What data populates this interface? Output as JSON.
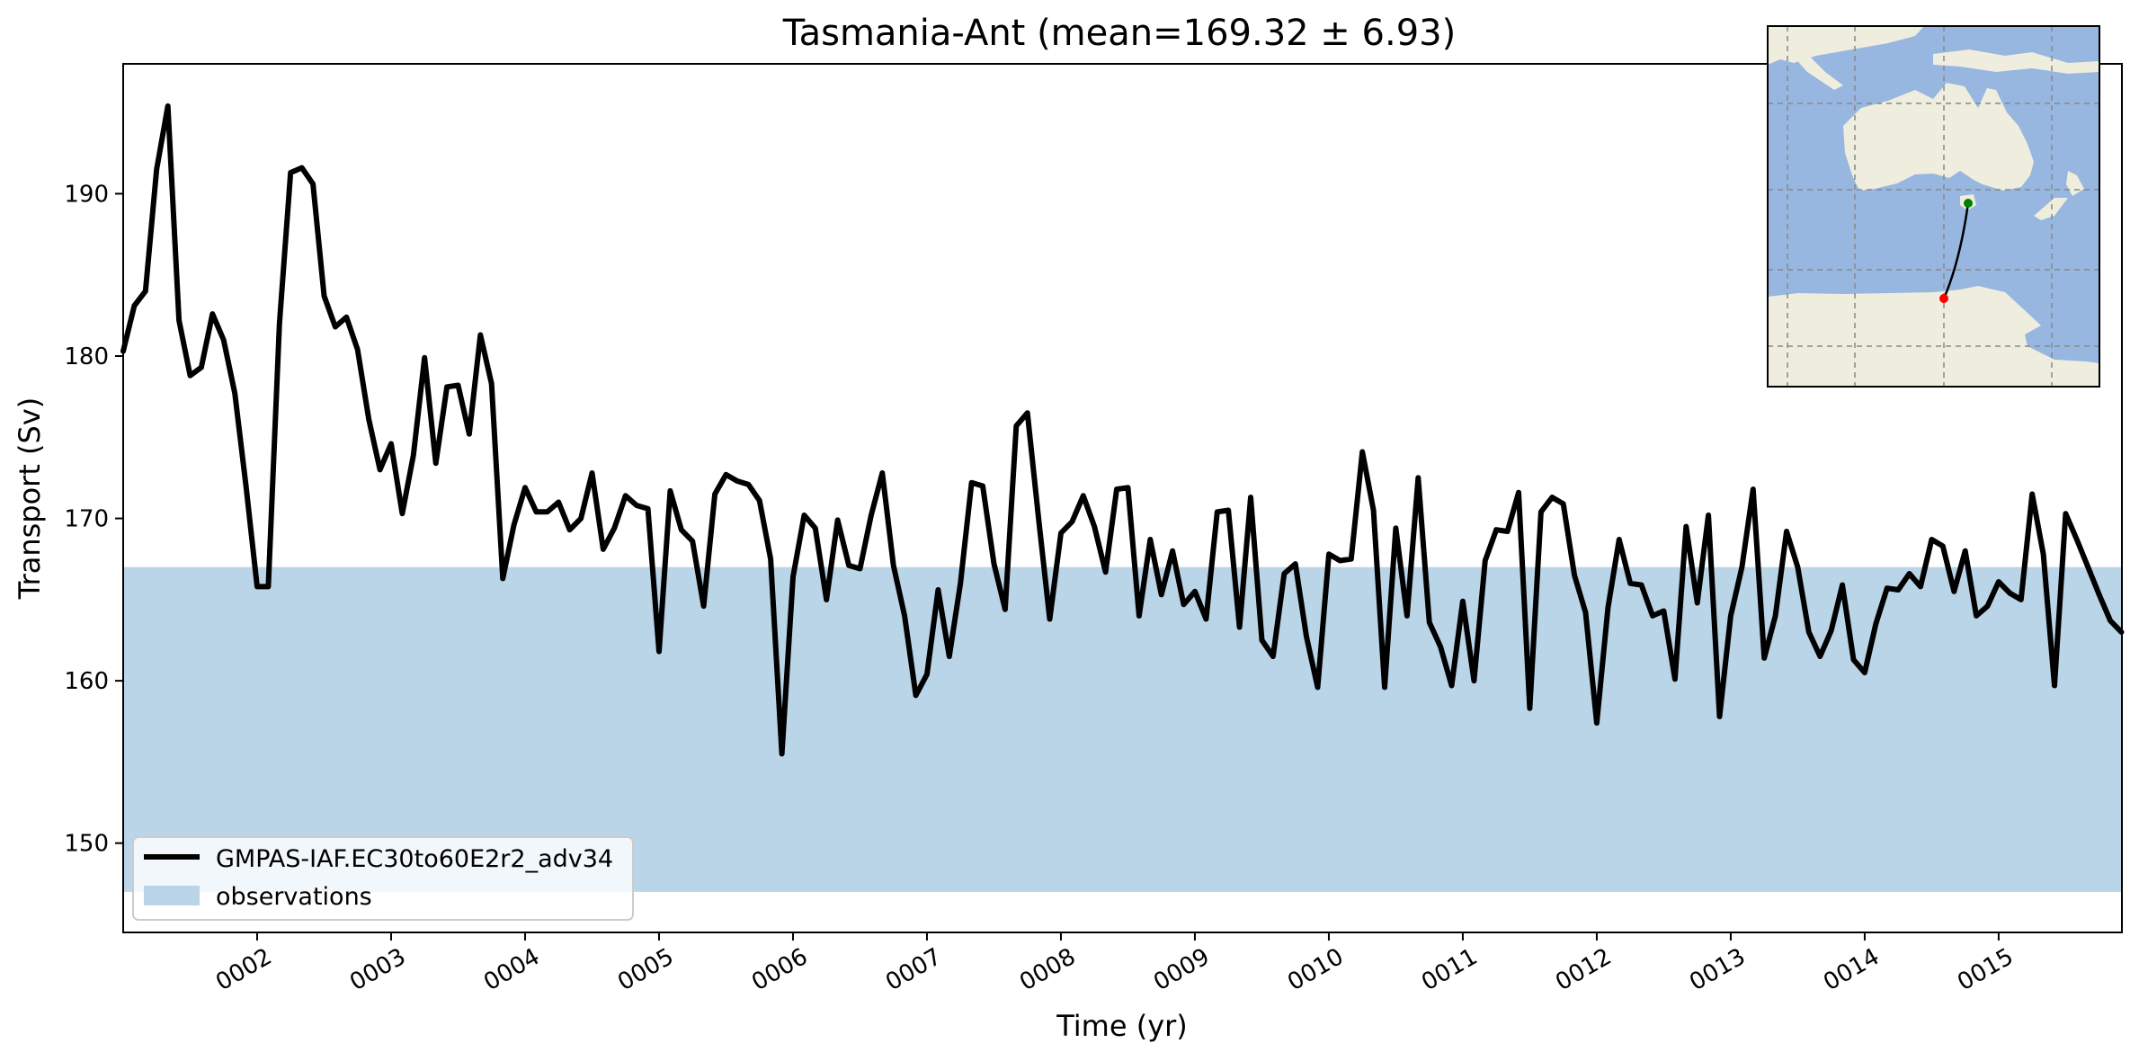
{
  "chart_data": {
    "type": "line",
    "title": "Tasmania-Ant (mean=169.32 ± 6.93)",
    "xlabel": "Time (yr)",
    "ylabel": "Transport (Sv)",
    "xlim": [
      1.0,
      15.92
    ],
    "ylim": [
      144.5,
      198.0
    ],
    "x_ticks": [
      2,
      3,
      4,
      5,
      6,
      7,
      8,
      9,
      10,
      11,
      12,
      13,
      14,
      15
    ],
    "x_tick_labels": [
      "0002",
      "0003",
      "0004",
      "0005",
      "0006",
      "0007",
      "0008",
      "0009",
      "0010",
      "0011",
      "0012",
      "0013",
      "0014",
      "0015"
    ],
    "y_ticks": [
      150,
      160,
      170,
      180,
      190
    ],
    "y_tick_labels": [
      "150",
      "160",
      "170",
      "180",
      "190"
    ],
    "grid": false,
    "legend_position": "lower-left",
    "observations_band": {
      "name": "observations",
      "y0": 147.0,
      "y1": 167.0,
      "color": "#bad4e8"
    },
    "series": [
      {
        "name": "GMPAS-IAF.EC30to60E2r2_adv34",
        "color": "#000000",
        "x_start": 1.0,
        "x_step": 0.08333333,
        "values": [
          180.3,
          183.1,
          184.0,
          191.5,
          195.4,
          182.2,
          178.8,
          179.3,
          182.6,
          181.0,
          177.7,
          172.0,
          165.8,
          165.8,
          182.0,
          191.3,
          191.6,
          190.6,
          183.7,
          181.8,
          182.4,
          180.4,
          176.1,
          173.0,
          174.6,
          170.3,
          173.9,
          179.9,
          173.4,
          178.1,
          178.2,
          175.2,
          181.3,
          178.3,
          166.3,
          169.6,
          171.9,
          170.4,
          170.4,
          171.0,
          169.3,
          170.0,
          172.8,
          168.1,
          169.4,
          171.4,
          170.8,
          170.6,
          161.8,
          171.7,
          169.3,
          168.6,
          164.6,
          171.5,
          172.7,
          172.3,
          172.1,
          171.1,
          167.5,
          155.5,
          166.4,
          170.2,
          169.4,
          165.0,
          169.9,
          167.1,
          166.9,
          170.2,
          172.8,
          167.1,
          164.0,
          159.1,
          160.4,
          165.6,
          161.5,
          166.0,
          172.2,
          172.0,
          167.2,
          164.4,
          175.7,
          176.5,
          170.0,
          163.8,
          169.1,
          169.8,
          171.4,
          169.5,
          166.7,
          171.8,
          171.9,
          164.0,
          168.7,
          165.3,
          168.0,
          164.7,
          165.5,
          163.8,
          170.4,
          170.5,
          163.3,
          171.3,
          162.5,
          161.5,
          166.6,
          167.2,
          162.7,
          159.6,
          167.8,
          167.4,
          167.5,
          174.1,
          170.5,
          159.6,
          169.4,
          164.0,
          172.5,
          163.6,
          162.1,
          159.7,
          164.9,
          160.0,
          167.4,
          169.3,
          169.2,
          171.6,
          158.3,
          170.4,
          171.3,
          170.9,
          166.5,
          164.2,
          157.4,
          164.5,
          168.7,
          166.0,
          165.9,
          164.0,
          164.3,
          160.1,
          169.5,
          164.8,
          170.2,
          157.8,
          164.0,
          167.0,
          171.8,
          161.4,
          164.0,
          169.2,
          167.0,
          163.0,
          161.5,
          163.1,
          165.9,
          161.3,
          160.5,
          163.5,
          165.7,
          165.6,
          166.6,
          165.8,
          168.7,
          168.3,
          165.5,
          168.0,
          164.0,
          164.6,
          166.1,
          165.4,
          165.0,
          171.5,
          167.8,
          159.7,
          170.3,
          168.7,
          167.0,
          165.3,
          163.7,
          163.0
        ]
      }
    ]
  },
  "inset_map": {
    "ocean_color": "#97b6e0",
    "land_color": "#efedde",
    "section_start_marker_color": "#008000",
    "section_end_marker_color": "#ff0000"
  }
}
